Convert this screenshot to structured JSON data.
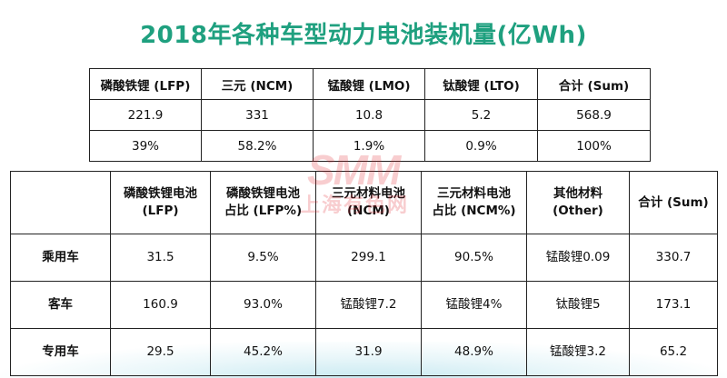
{
  "title": "2018年各种车型动力电池装机量(亿Wh)",
  "watermark": {
    "logo": "SMM",
    "sub": "上海有色网"
  },
  "table1": {
    "headers": [
      "磷酸铁锂 (LFP)",
      "三元 (NCM)",
      "锰酸锂 (LMO)",
      "钛酸锂 (LTO)",
      "合计 (Sum)"
    ],
    "rows": [
      [
        "221.9",
        "331",
        "10.8",
        "5.2",
        "568.9"
      ],
      [
        "39%",
        "58.2%",
        "1.9%",
        "0.9%",
        "100%"
      ]
    ]
  },
  "table2": {
    "headers": [
      "",
      "磷酸铁锂电池\n(LFP)",
      "磷酸铁锂电池\n占比 (LFP%)",
      "三元材料电池\n(NCM)",
      "三元材料电池\n占比 (NCM%)",
      "其他材料\n(Other)",
      "合计 (Sum)"
    ],
    "rows": [
      {
        "label": "乘用车",
        "cells": [
          "31.5",
          "9.5%",
          "299.1",
          "90.5%",
          "锰酸锂0.09",
          "330.7"
        ]
      },
      {
        "label": "客车",
        "cells": [
          "160.9",
          "93.0%",
          "锰酸锂7.2",
          "锰酸锂4%",
          "钛酸锂5",
          "173.1"
        ]
      },
      {
        "label": "专用车",
        "cells": [
          "29.5",
          "45.2%",
          "31.9",
          "48.9%",
          "锰酸锂3.2",
          "65.2"
        ]
      }
    ]
  }
}
